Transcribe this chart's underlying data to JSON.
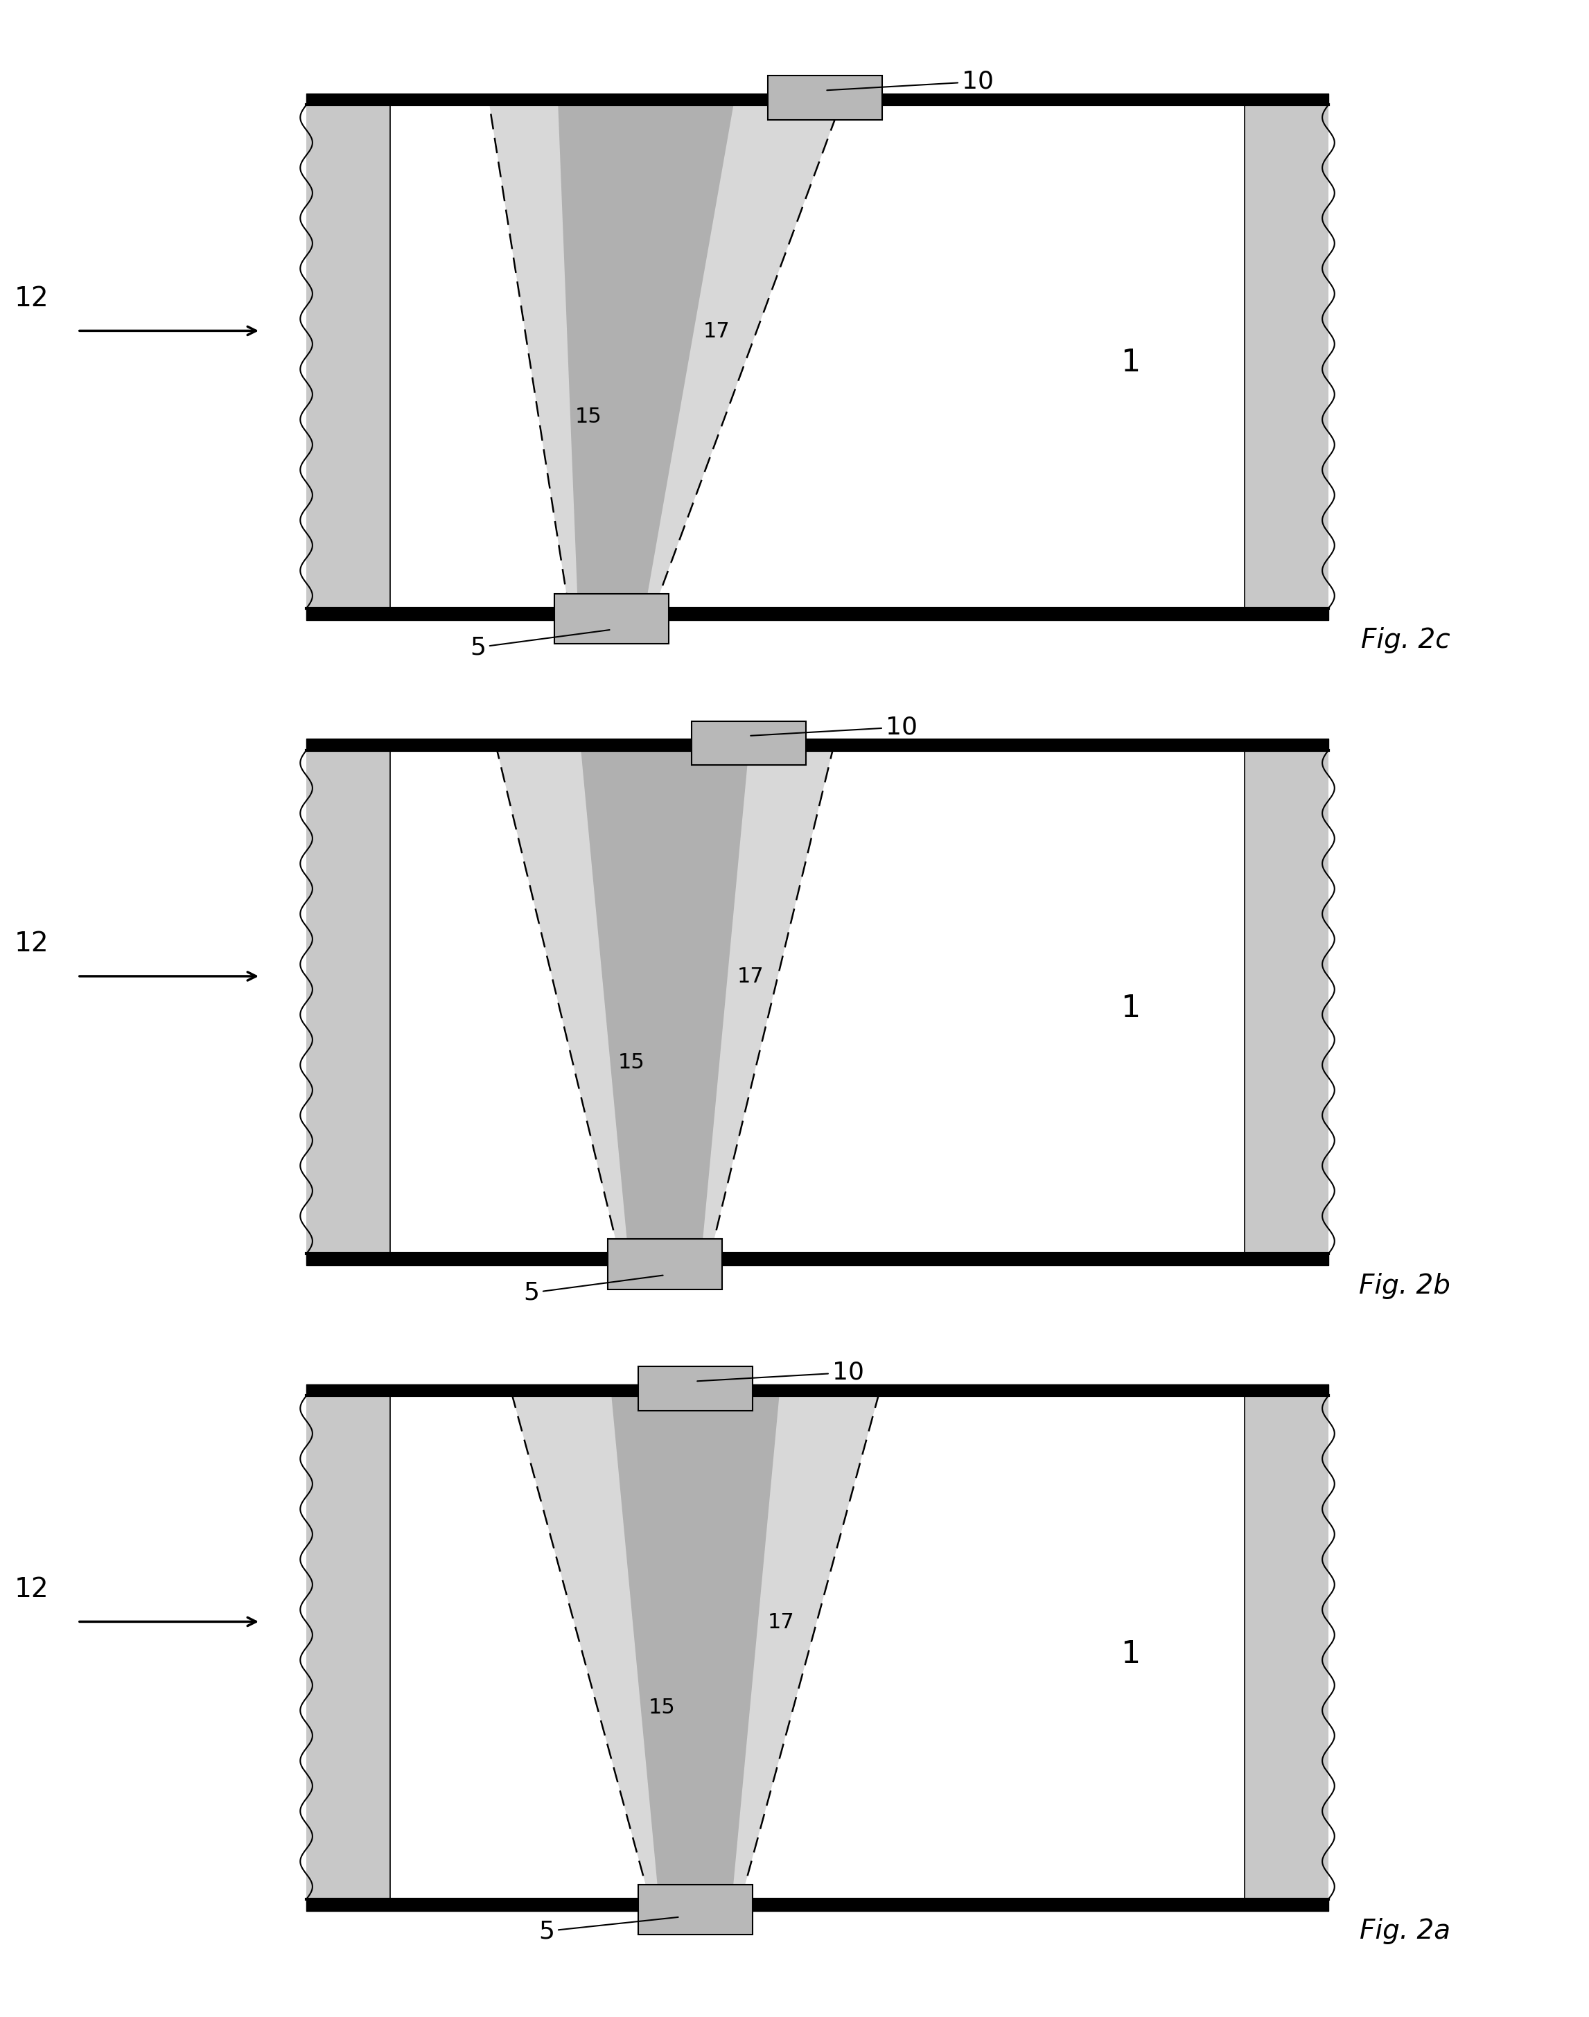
{
  "fig_labels": [
    "Fig. 2a",
    "Fig. 2b",
    "Fig. 2c"
  ],
  "label_1": "1",
  "label_5": "5",
  "label_10": "10",
  "label_12": "12",
  "label_15": "15",
  "label_17": "17",
  "bg_color": "#ffffff",
  "pipe_wall_fill": "#c8c8c8",
  "pipe_inner_fill": "#ffffff",
  "beam_outer_fill": "#d8d8d8",
  "beam_inner_fill": "#b0b0b0",
  "transducer_fill": "#b8b8b8",
  "border_color": "#000000",
  "wavy_amplitude": 0.04,
  "n_waves": 10
}
